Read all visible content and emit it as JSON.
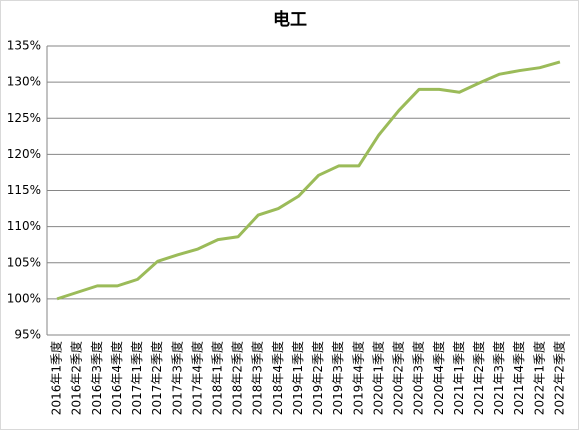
{
  "chart_data": {
    "type": "line",
    "title": "电工",
    "categories": [
      "2016年1季度",
      "2016年2季度",
      "2016年3季度",
      "2016年4季度",
      "2017年1季度",
      "2017年2季度",
      "2017年3季度",
      "2017年4季度",
      "2018年1季度",
      "2018年2季度",
      "2018年3季度",
      "2018年4季度",
      "2019年1季度",
      "2019年2季度",
      "2019年3季度",
      "2019年4季度",
      "2020年1季度",
      "2020年2季度",
      "2020年3季度",
      "2020年4季度",
      "2021年1季度",
      "2021年2季度",
      "2021年3季度",
      "2021年4季度",
      "2022年1季度",
      "2022年2季度"
    ],
    "values": [
      100,
      100.9,
      101.8,
      101.8,
      102.7,
      105.2,
      106.1,
      106.9,
      108.2,
      108.6,
      111.6,
      112.5,
      114.2,
      117.1,
      118.4,
      118.4,
      122.7,
      126.1,
      129.0,
      129.0,
      128.6,
      129.9,
      131.1,
      131.6,
      132.0,
      132.8
    ],
    "color": "#9bbb59",
    "ylim": [
      95,
      135
    ],
    "yticks": [
      {
        "value": 95,
        "label": "95%"
      },
      {
        "value": 100,
        "label": "100%"
      },
      {
        "value": 105,
        "label": "105%"
      },
      {
        "value": 110,
        "label": "110%"
      },
      {
        "value": 115,
        "label": "115%"
      },
      {
        "value": 120,
        "label": "120%"
      },
      {
        "value": 125,
        "label": "125%"
      },
      {
        "value": 130,
        "label": "130%"
      },
      {
        "value": 135,
        "label": "135%"
      }
    ],
    "grid": true
  }
}
